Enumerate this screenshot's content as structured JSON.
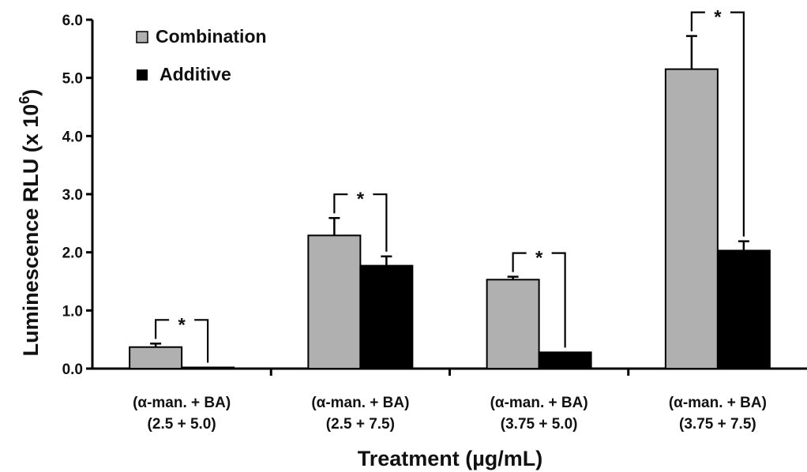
{
  "chart_data": {
    "type": "bar",
    "xlabel": "Treatment (µg/mL)",
    "ylabel_main": "Luminescence RLU (x 10",
    "ylabel_exp": "6",
    "ylabel_close": ")",
    "ylim": [
      0,
      6.0
    ],
    "yticks": [
      "0.0",
      "1.0",
      "2.0",
      "3.0",
      "4.0",
      "5.0",
      "6.0"
    ],
    "categories": [
      [
        "(α-man. + BA)",
        "(2.5 + 5.0)"
      ],
      [
        "(α-man. + BA)",
        "(2.5 + 7.5)"
      ],
      [
        "(α-man. + BA)",
        "(3.75 + 5.0)"
      ],
      [
        "(α-man. + BA)",
        "(3.75 + 7.5)"
      ]
    ],
    "series": [
      {
        "name": "Combination",
        "color": "#b0b0b0",
        "values": [
          0.37,
          2.29,
          1.53,
          5.15
        ],
        "errors": [
          0.06,
          0.3,
          0.05,
          0.57
        ]
      },
      {
        "name": "Additive",
        "color": "#000000",
        "values": [
          0.02,
          1.77,
          0.28,
          2.03
        ],
        "errors": [
          0.0,
          0.16,
          0.0,
          0.16
        ]
      }
    ],
    "significance": [
      "*",
      "*",
      "*",
      "*"
    ],
    "legend_position": "top-left",
    "grid": false
  }
}
